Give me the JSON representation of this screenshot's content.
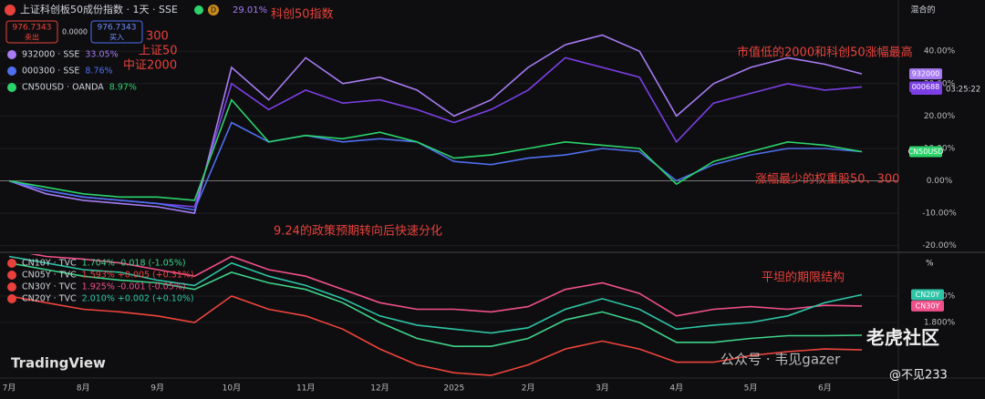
{
  "header": {
    "title": "上证科创板50成份指数 · 1天 · SSE",
    "interval_badge": "D",
    "sell_price": "976.7343",
    "sell_label": "卖出",
    "spread": "0.0000",
    "buy_price": "976.7343",
    "buy_label": "买入",
    "scale_mode": "混合的",
    "clock": "03:25:22",
    "unit": "%"
  },
  "watermarks": {
    "brand": "TradingView",
    "wechat": "公众号 · 韦见gazer",
    "community": "老虎社区",
    "user": "@不见233"
  },
  "chart_data": [
    {
      "type": "line",
      "annotations": [
        "科创50指数",
        "300",
        "上证50",
        "中证2000",
        "市值低的2000和科创50涨幅最高",
        "涨幅最少的权重股50、300",
        "9.24的政策预期转向后快速分化"
      ],
      "categories": [
        null,
        null,
        null,
        null,
        null,
        null,
        null,
        null,
        null,
        null,
        null,
        null,
        null,
        null,
        null,
        null,
        null,
        null,
        null,
        null,
        null,
        null,
        null,
        null
      ],
      "ylim": [
        -21.5,
        53
      ],
      "yticks": [
        {
          "value": 40,
          "label": "40.00%"
        },
        {
          "value": 30,
          "label": "30.00%"
        },
        {
          "value": 20,
          "label": "20.00%"
        },
        {
          "value": 10,
          "label": "10.00%"
        },
        {
          "value": 0,
          "label": "0.00%"
        },
        {
          "value": -10,
          "label": "-10.00%"
        },
        {
          "value": -20,
          "label": "-20.00%"
        }
      ],
      "grid": true,
      "series": [
        {
          "name": "000688",
          "tag": "000688",
          "legend_value": "29.01%",
          "color": "#7b3fe4",
          "values": [
            0,
            -3,
            -5,
            -6,
            -7,
            -8,
            30,
            22,
            28,
            24,
            25,
            22,
            18,
            22,
            28,
            38,
            35,
            32,
            12,
            24,
            27,
            30,
            28,
            29
          ]
        },
        {
          "name": "932000 · SSE",
          "tag": "932000",
          "legend_value": "33.05%",
          "color": "#a77bf3",
          "values": [
            0,
            -4,
            -6,
            -7,
            -8,
            -10,
            35,
            25,
            38,
            30,
            32,
            28,
            20,
            25,
            35,
            42,
            45,
            40,
            20,
            30,
            35,
            38,
            36,
            33
          ]
        },
        {
          "name": "000300 · SSE",
          "tag": "000300",
          "legend_value": "8.76%",
          "color": "#4f6ff0",
          "values": [
            0,
            -3,
            -5,
            -6,
            -7,
            -9,
            18,
            12,
            14,
            12,
            13,
            12,
            6,
            5,
            7,
            8,
            10,
            9,
            0,
            5,
            8,
            10,
            10,
            9
          ]
        },
        {
          "name": "CN50USD · OANDA",
          "tag": "CN50USD",
          "legend_value": "8.97%",
          "color": "#2bd36b",
          "values": [
            0,
            -2,
            -4,
            -5,
            -5,
            -6,
            25,
            12,
            14,
            13,
            15,
            12,
            7,
            8,
            10,
            12,
            11,
            10,
            -1,
            6,
            9,
            12,
            11,
            9
          ]
        }
      ]
    },
    {
      "type": "line",
      "annotations": [
        "平坦的期限结构"
      ],
      "categories": [
        "7月",
        null,
        "8月",
        null,
        "9月",
        null,
        "10月",
        null,
        "11月",
        null,
        "12月",
        null,
        "2025",
        null,
        "2月",
        null,
        "3月",
        null,
        "4月",
        null,
        "5月",
        null,
        "6月",
        null
      ],
      "ylim": [
        1.38,
        2.31
      ],
      "yticks": [
        {
          "value": 2,
          "label": "2.000%"
        },
        {
          "value": 1.8,
          "label": "1.800%"
        }
      ],
      "grid": true,
      "series": [
        {
          "name": "CN10Y · TVC",
          "legend_value": "1.704% -0.018 (-1.05%)",
          "color": "#3fd38a",
          "values": [
            2.25,
            2.2,
            2.15,
            2.12,
            2.1,
            2.05,
            2.18,
            2.1,
            2.05,
            1.95,
            1.8,
            1.68,
            1.62,
            1.62,
            1.68,
            1.82,
            1.88,
            1.8,
            1.65,
            1.65,
            1.68,
            1.7,
            1.7,
            1.704
          ]
        },
        {
          "name": "CN05Y · TVC",
          "legend_value": "1.593% +0.005 (+0.31%)",
          "color": "#f0443c",
          "values": [
            2.0,
            1.95,
            1.9,
            1.88,
            1.85,
            1.8,
            2.0,
            1.9,
            1.85,
            1.75,
            1.6,
            1.48,
            1.42,
            1.4,
            1.48,
            1.6,
            1.66,
            1.6,
            1.5,
            1.5,
            1.55,
            1.58,
            1.6,
            1.593
          ]
        },
        {
          "name": "CN30Y · TVC",
          "tag": "CN30Y",
          "legend_value": "1.925% -0.001 (-0.05%)",
          "color": "#f0508a",
          "values": [
            2.35,
            2.3,
            2.28,
            2.25,
            2.2,
            2.15,
            2.3,
            2.2,
            2.15,
            2.05,
            1.95,
            1.9,
            1.9,
            1.88,
            1.92,
            2.05,
            2.1,
            2.02,
            1.85,
            1.9,
            1.92,
            1.9,
            1.93,
            1.925
          ]
        },
        {
          "name": "CN20Y · TVC",
          "tag": "CN20Y",
          "legend_value": "2.010% +0.002 (+0.10%)",
          "color": "#2ec4a6",
          "values": [
            2.3,
            2.25,
            2.2,
            2.18,
            2.12,
            2.08,
            2.25,
            2.15,
            2.08,
            1.98,
            1.85,
            1.78,
            1.75,
            1.72,
            1.76,
            1.9,
            1.98,
            1.9,
            1.75,
            1.78,
            1.8,
            1.85,
            1.95,
            2.01
          ]
        }
      ]
    }
  ]
}
